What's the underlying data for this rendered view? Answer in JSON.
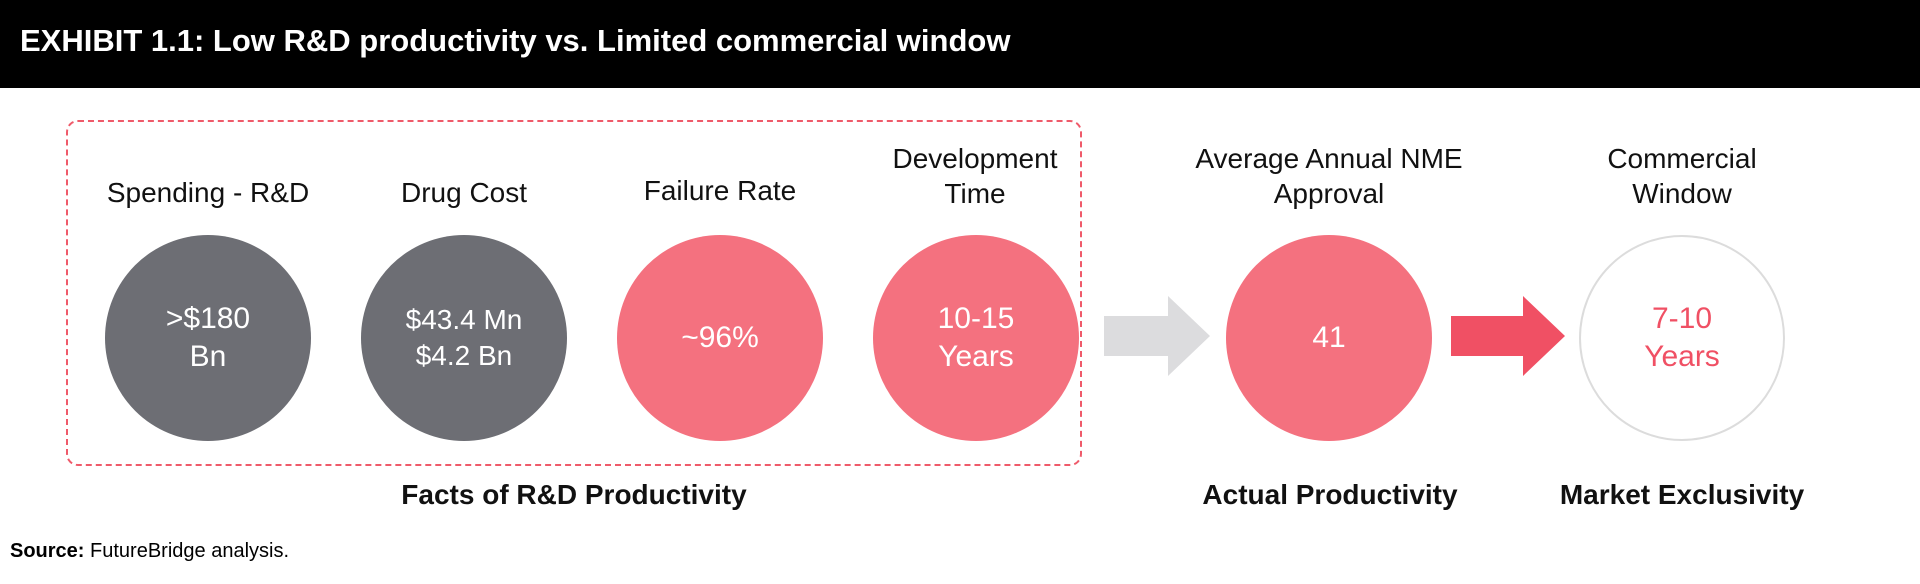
{
  "header": {
    "title": "EXHIBIT 1.1: Low R&D productivity vs. Limited commercial window"
  },
  "metrics": [
    {
      "label": [
        "Spending - R&D"
      ],
      "value": [
        ">$180",
        "Bn"
      ],
      "style": "gray"
    },
    {
      "label": [
        "Drug Cost"
      ],
      "value": [
        "$43.4 Mn",
        "$4.2 Bn"
      ],
      "style": "gray"
    },
    {
      "label": [
        "Failure Rate"
      ],
      "value": [
        "~96%"
      ],
      "style": "pink"
    },
    {
      "label": [
        "Development",
        "Time"
      ],
      "value": [
        "10-15",
        "Years"
      ],
      "style": "pink"
    },
    {
      "label": [
        "Average Annual NME",
        "Approval"
      ],
      "value": [
        "41"
      ],
      "style": "pink"
    },
    {
      "label": [
        "Commercial",
        "Window"
      ],
      "value": [
        "7-10",
        "Years"
      ],
      "style": "outline"
    }
  ],
  "groups": {
    "facts": "Facts of R&D Productivity",
    "actual": "Actual Productivity",
    "market": "Market Exclusivity"
  },
  "source": {
    "prefix": "Source:",
    "text": " FutureBridge analysis."
  },
  "colors": {
    "header_bg": "#000000",
    "gray_circle": "#6d6e74",
    "pink_circle": "#f4717f",
    "accent_red": "#f05064",
    "light_arrow": "#dcdcde"
  }
}
